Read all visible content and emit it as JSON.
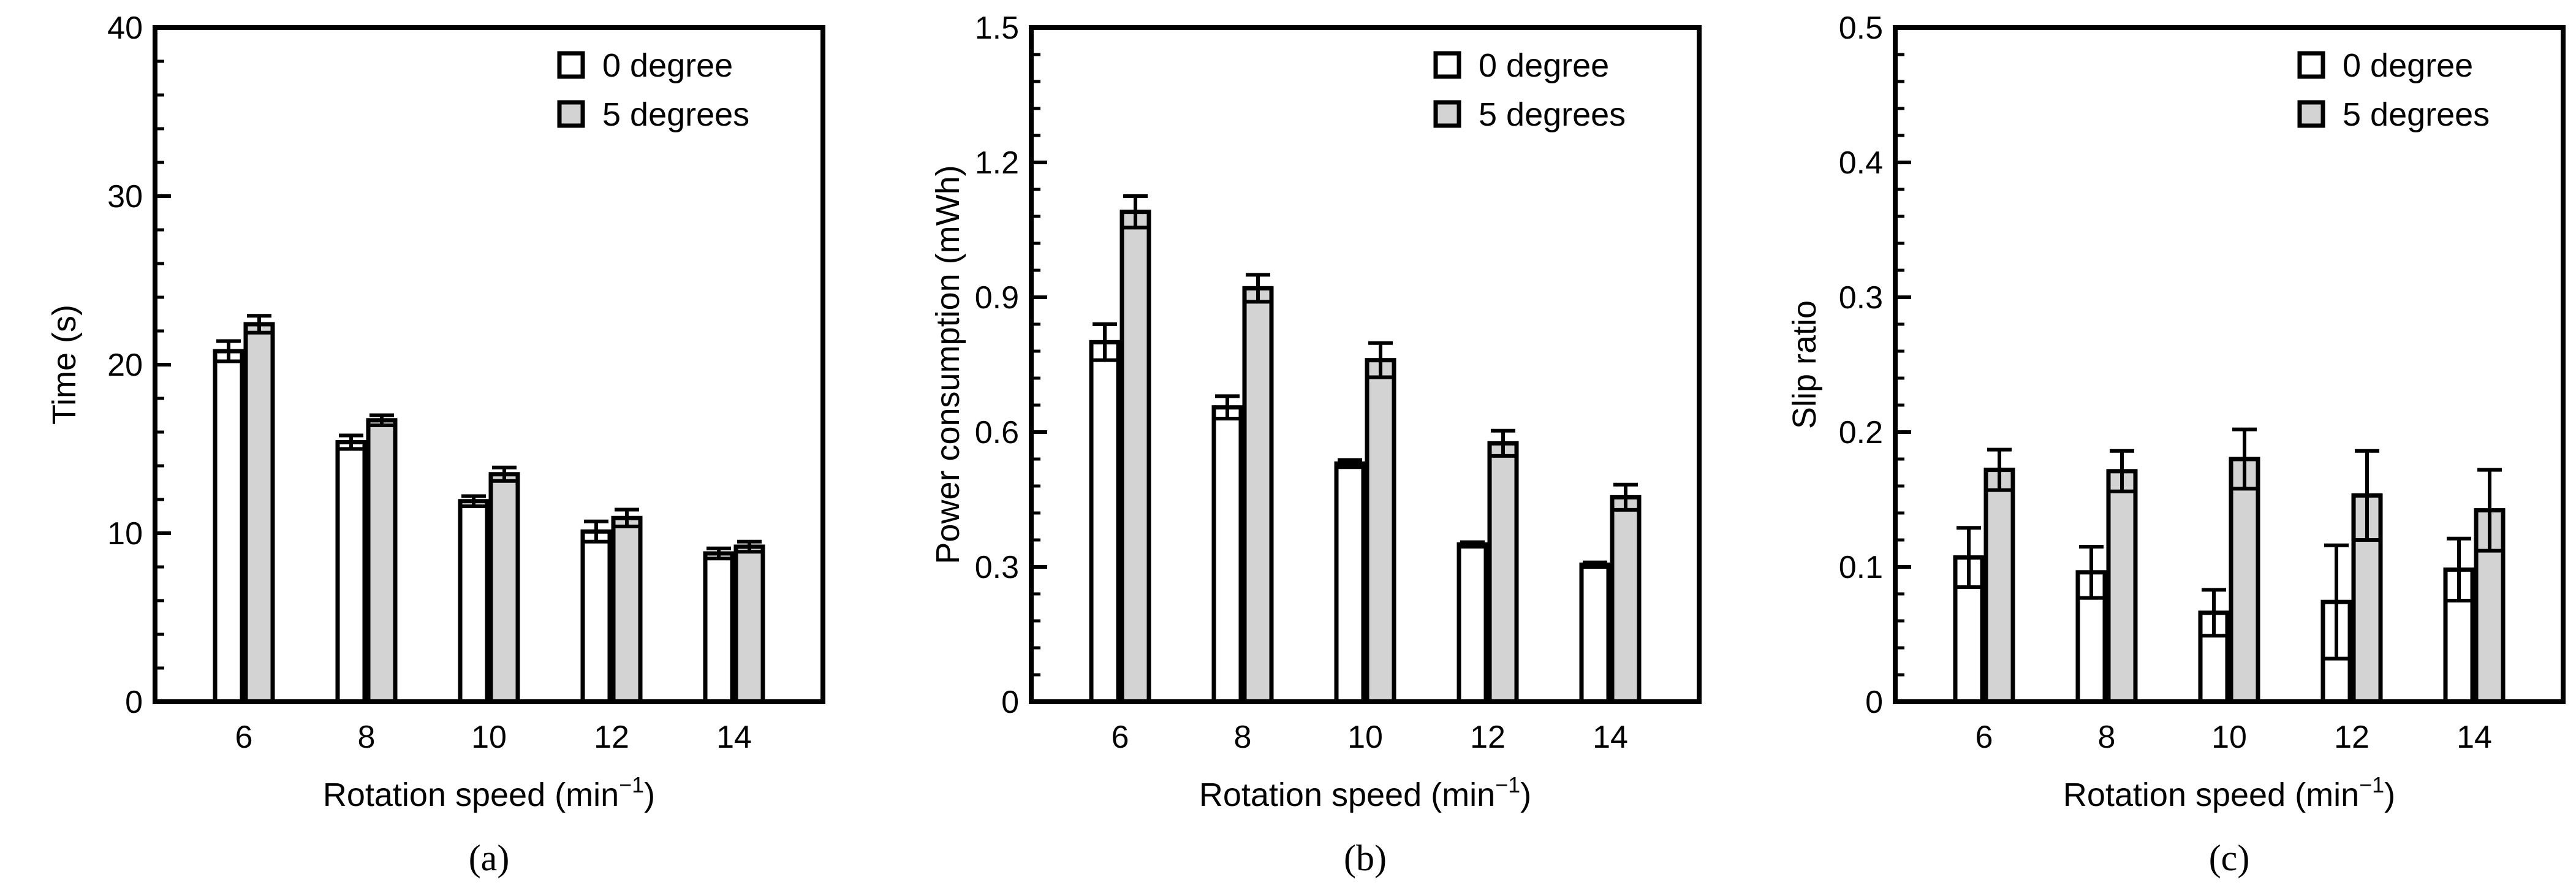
{
  "chart_data": [
    {
      "type": "bar",
      "panel_label": "(a)",
      "categories": [
        "6",
        "8",
        "10",
        "12",
        "14"
      ],
      "series": [
        {
          "name": "0 degree",
          "values": [
            20.8,
            15.4,
            11.9,
            10.1,
            8.8
          ],
          "errors": [
            0.6,
            0.4,
            0.3,
            0.6,
            0.3
          ],
          "color": "#ffffff"
        },
        {
          "name": "5 degrees",
          "values": [
            22.4,
            16.7,
            13.5,
            10.9,
            9.2
          ],
          "errors": [
            0.5,
            0.3,
            0.4,
            0.5,
            0.3
          ],
          "color": "#d3d3d3"
        }
      ],
      "ylabel": "Time (s)",
      "xlabel": "Rotation speed (min",
      "xlabel_sup": "−1",
      "xlabel_end": ")",
      "ylim": [
        0,
        40
      ],
      "yticks": [
        0,
        10,
        20,
        30,
        40
      ],
      "ytick_labels": [
        "0",
        "10",
        "20",
        "30",
        "40"
      ],
      "minor_step": 2,
      "legend_position": "top-right"
    },
    {
      "type": "bar",
      "panel_label": "(b)",
      "categories": [
        "6",
        "8",
        "10",
        "12",
        "14"
      ],
      "series": [
        {
          "name": "0 degree",
          "values": [
            0.8,
            0.655,
            0.53,
            0.35,
            0.305
          ],
          "errors": [
            0.04,
            0.025,
            0.008,
            0.005,
            0.005
          ],
          "color": "#ffffff"
        },
        {
          "name": "5 degrees",
          "values": [
            1.09,
            0.92,
            0.76,
            0.575,
            0.455
          ],
          "errors": [
            0.035,
            0.03,
            0.038,
            0.028,
            0.028
          ],
          "color": "#d3d3d3"
        }
      ],
      "ylabel": "Power consumption (mWh)",
      "xlabel": "Rotation speed (min",
      "xlabel_sup": "−1",
      "xlabel_end": ")",
      "ylim": [
        0,
        1.5
      ],
      "yticks": [
        0,
        0.3,
        0.6,
        0.9,
        1.2,
        1.5
      ],
      "ytick_labels": [
        "0",
        "0.3",
        "0.6",
        "0.9",
        "1.2",
        "1.5"
      ],
      "minor_step": 0.06,
      "legend_position": "top-right"
    },
    {
      "type": "bar",
      "panel_label": "(c)",
      "categories": [
        "6",
        "8",
        "10",
        "12",
        "14"
      ],
      "series": [
        {
          "name": "0 degree",
          "values": [
            0.107,
            0.096,
            0.066,
            0.074,
            0.098
          ],
          "errors": [
            0.022,
            0.019,
            0.017,
            0.042,
            0.023
          ],
          "color": "#ffffff"
        },
        {
          "name": "5 degrees",
          "values": [
            0.172,
            0.171,
            0.18,
            0.153,
            0.142
          ],
          "errors": [
            0.015,
            0.015,
            0.022,
            0.033,
            0.03
          ],
          "color": "#d3d3d3"
        }
      ],
      "ylabel": "Slip ratio",
      "xlabel": "Rotation speed (min",
      "xlabel_sup": "−1",
      "xlabel_end": ")",
      "ylim": [
        0,
        0.5
      ],
      "yticks": [
        0,
        0.1,
        0.2,
        0.3,
        0.4,
        0.5
      ],
      "ytick_labels": [
        "0",
        "0.1",
        "0.2",
        "0.3",
        "0.4",
        "0.5"
      ],
      "minor_step": 0.02,
      "legend_position": "top-right"
    }
  ]
}
